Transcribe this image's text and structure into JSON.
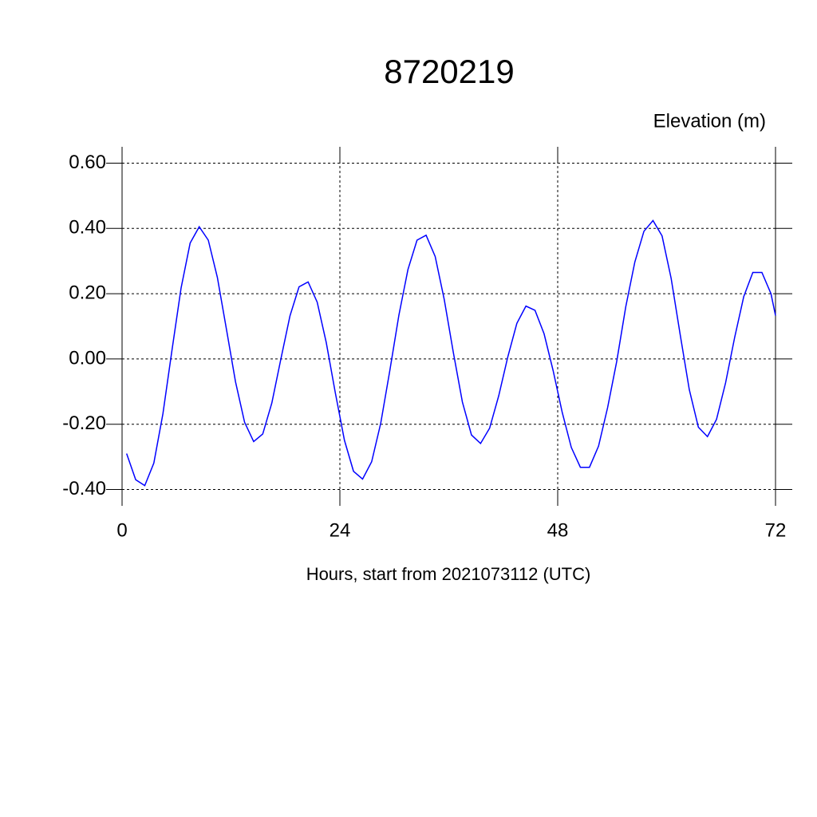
{
  "chart_data": {
    "type": "line",
    "title": "8720219",
    "y_label": "Elevation (m)",
    "x_label": "Hours, start from 2021073112 (UTC)",
    "x": [
      0.5,
      1.5,
      2.5,
      3.5,
      4.5,
      5.5,
      6.5,
      7.5,
      8.5,
      9.5,
      10.5,
      11.5,
      12.5,
      13.5,
      14.5,
      15.5,
      16.5,
      17.5,
      18.5,
      19.5,
      20.5,
      21.5,
      22.5,
      23.5,
      24.5,
      25.5,
      26.5,
      27.5,
      28.5,
      29.5,
      30.5,
      31.5,
      32.5,
      33.5,
      34.5,
      35.5,
      36.5,
      37.5,
      38.5,
      39.5,
      40.5,
      41.5,
      42.5,
      43.5,
      44.5,
      45.5,
      46.5,
      47.5,
      48.5,
      49.5,
      50.5,
      51.5,
      52.5,
      53.5,
      54.5,
      55.5,
      56.5,
      57.5,
      58.5,
      59.5,
      60.5,
      61.5,
      62.5,
      63.5,
      64.5,
      65.5,
      66.5,
      67.5,
      68.5,
      69.5,
      70.5,
      71.5,
      72
    ],
    "values": [
      -0.29,
      -0.37,
      -0.388,
      -0.319,
      -0.168,
      0.027,
      0.217,
      0.355,
      0.405,
      0.364,
      0.25,
      0.091,
      -0.07,
      -0.194,
      -0.253,
      -0.23,
      -0.135,
      0,
      0.132,
      0.221,
      0.236,
      0.174,
      0.05,
      -0.104,
      -0.249,
      -0.344,
      -0.368,
      -0.315,
      -0.197,
      -0.036,
      0.134,
      0.274,
      0.364,
      0.379,
      0.314,
      0.182,
      0.02,
      -0.132,
      -0.233,
      -0.259,
      -0.212,
      -0.113,
      0.006,
      0.109,
      0.162,
      0.149,
      0.077,
      -0.036,
      -0.164,
      -0.271,
      -0.332,
      -0.332,
      -0.267,
      -0.149,
      -0.008,
      0.16,
      0.297,
      0.391,
      0.424,
      0.377,
      0.247,
      0.074,
      -0.094,
      -0.209,
      -0.238,
      -0.185,
      -0.073,
      0.066,
      0.191,
      0.265,
      0.265,
      0.2,
      0.133
    ],
    "color": "#0000ff",
    "xlim": [
      0,
      72
    ],
    "xticks": [
      0,
      24,
      48,
      72
    ],
    "ylim": [
      -0.45,
      0.65
    ],
    "yticks": [
      {
        "value": 0.6,
        "label": "0.60"
      },
      {
        "value": 0.4,
        "label": "0.40"
      },
      {
        "value": 0.2,
        "label": "0.20"
      },
      {
        "value": 0,
        "label": "0.00"
      },
      {
        "value": -0.2,
        "label": "-0.20"
      },
      {
        "value": -0.4,
        "label": "-0.40"
      }
    ],
    "grid": true
  }
}
